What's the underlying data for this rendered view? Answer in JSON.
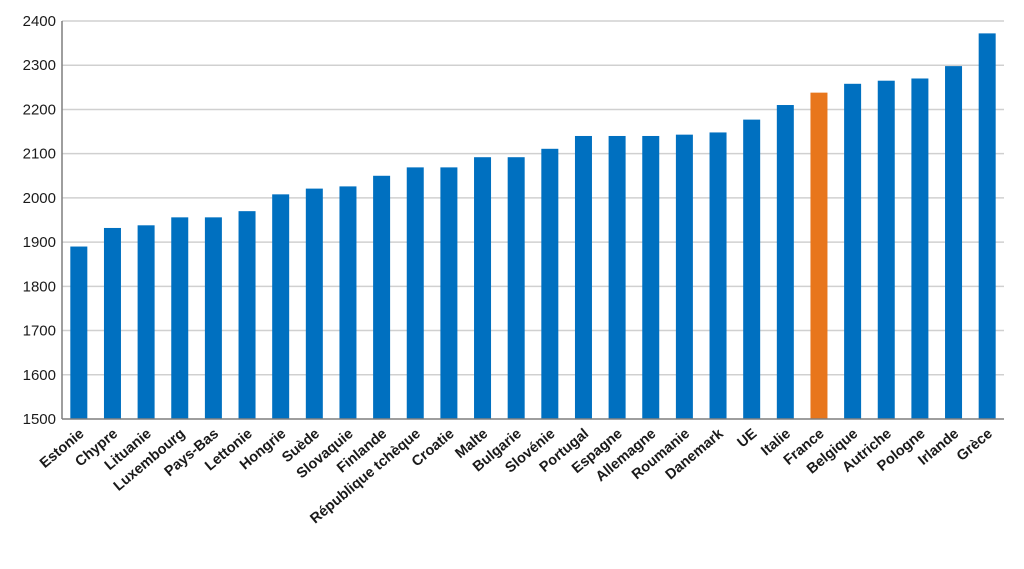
{
  "chart_data": {
    "type": "bar",
    "categories": [
      "Estonie",
      "Chypre",
      "Lituanie",
      "Luxembourg",
      "Pays-Bas",
      "Lettonie",
      "Hongrie",
      "Suède",
      "Slovaquie",
      "Finlande",
      "République tchèque",
      "Croatie",
      "Malte",
      "Bulgarie",
      "Slovénie",
      "Portugal",
      "Espagne",
      "Allemagne",
      "Roumanie",
      "Danemark",
      "UE",
      "Italie",
      "France",
      "Belgique",
      "Autriche",
      "Pologne",
      "Irlande",
      "Grèce"
    ],
    "values": [
      1890,
      1932,
      1938,
      1956,
      1956,
      1970,
      2008,
      2021,
      2026,
      2050,
      2069,
      2069,
      2092,
      2092,
      2111,
      2140,
      2140,
      2140,
      2143,
      2148,
      2177,
      2210,
      2238,
      2258,
      2265,
      2270,
      2298,
      2372
    ],
    "highlight_category": "France",
    "ylim": [
      1500,
      2400
    ],
    "yticks": [
      1500,
      1600,
      1700,
      1800,
      1900,
      2000,
      2100,
      2200,
      2300,
      2400
    ],
    "grid": true,
    "legend": "none",
    "title": "",
    "xlabel": "",
    "ylabel": "",
    "colors": {
      "bar": "#0070c0",
      "highlight": "#e8761c",
      "grid": "#d0d0d0",
      "axis": "#7f7f7f"
    }
  }
}
